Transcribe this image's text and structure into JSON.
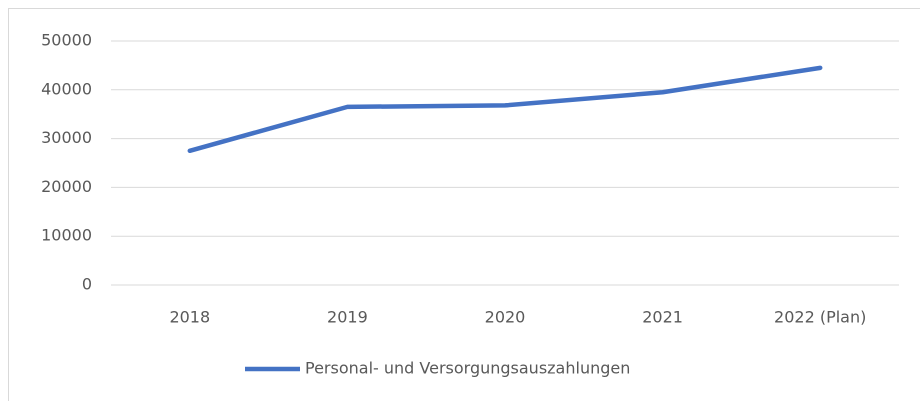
{
  "chart_data": {
    "type": "line",
    "categories": [
      "2018",
      "2019",
      "2020",
      "2021",
      "2022 (Plan)"
    ],
    "series": [
      {
        "name": "Personal- und Versorgungsauszahlungen",
        "color": "#4472c4",
        "values": [
          27500,
          36500,
          36800,
          39500,
          44500
        ]
      }
    ],
    "ylim": [
      0,
      50000
    ],
    "yticks": [
      0,
      10000,
      20000,
      30000,
      40000,
      50000
    ],
    "grid": true,
    "legend": "bottom"
  }
}
